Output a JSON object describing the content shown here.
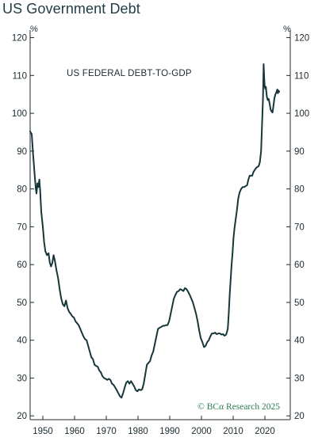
{
  "page": {
    "title": "US Government Debt"
  },
  "chart_data": {
    "type": "line",
    "annotation": "US FEDERAL DEBT-TO-GDP",
    "credit": "© BCα Research 2025",
    "unit_left": "%",
    "unit_right": "%",
    "xlim": [
      1946,
      2028
    ],
    "ylim": [
      19,
      122
    ],
    "yticks": [
      20,
      30,
      40,
      50,
      60,
      70,
      80,
      90,
      100,
      110,
      120
    ],
    "xticks": [
      1950,
      1960,
      1970,
      1980,
      1990,
      2000,
      2010,
      2020
    ],
    "line_color": "#16373a",
    "credit_color": "#2e7d55",
    "series": [
      {
        "values": [
          [
            1946.0,
            95.2
          ],
          [
            1946.5,
            94.5
          ],
          [
            1946.9,
            89.5
          ],
          [
            1947.4,
            84.0
          ],
          [
            1947.8,
            80.0
          ],
          [
            1948.0,
            78.8
          ],
          [
            1948.3,
            81.5
          ],
          [
            1948.6,
            80.5
          ],
          [
            1948.9,
            82.5
          ],
          [
            1949.2,
            79.0
          ],
          [
            1949.5,
            74.0
          ],
          [
            1950.0,
            70.0
          ],
          [
            1950.4,
            66.0
          ],
          [
            1950.8,
            63.5
          ],
          [
            1951.3,
            62.5
          ],
          [
            1951.8,
            63.0
          ],
          [
            1952.2,
            60.5
          ],
          [
            1952.6,
            59.5
          ],
          [
            1953.0,
            60.5
          ],
          [
            1953.4,
            62.5
          ],
          [
            1953.8,
            61.0
          ],
          [
            1954.3,
            58.5
          ],
          [
            1954.8,
            56.5
          ],
          [
            1955.3,
            53.5
          ],
          [
            1955.8,
            51.0
          ],
          [
            1956.3,
            49.5
          ],
          [
            1956.8,
            49.0
          ],
          [
            1957.3,
            50.5
          ],
          [
            1957.8,
            48.5
          ],
          [
            1958.3,
            47.5
          ],
          [
            1958.8,
            47.0
          ],
          [
            1959.3,
            46.3
          ],
          [
            1959.8,
            46.0
          ],
          [
            1960.3,
            45.0
          ],
          [
            1960.8,
            44.5
          ],
          [
            1961.3,
            44.0
          ],
          [
            1961.8,
            43.0
          ],
          [
            1962.3,
            42.0
          ],
          [
            1962.8,
            41.0
          ],
          [
            1963.3,
            40.3
          ],
          [
            1963.8,
            40.0
          ],
          [
            1964.3,
            38.5
          ],
          [
            1964.8,
            37.0
          ],
          [
            1965.3,
            35.5
          ],
          [
            1965.8,
            35.0
          ],
          [
            1966.3,
            33.5
          ],
          [
            1966.8,
            33.2
          ],
          [
            1967.3,
            33.0
          ],
          [
            1967.8,
            32.0
          ],
          [
            1968.3,
            31.5
          ],
          [
            1968.8,
            30.5
          ],
          [
            1969.3,
            30.0
          ],
          [
            1969.8,
            29.8
          ],
          [
            1970.3,
            29.5
          ],
          [
            1970.8,
            29.8
          ],
          [
            1971.3,
            29.5
          ],
          [
            1971.8,
            28.5
          ],
          [
            1972.3,
            28.2
          ],
          [
            1972.8,
            27.5
          ],
          [
            1973.3,
            26.8
          ],
          [
            1973.8,
            26.0
          ],
          [
            1974.3,
            25.2
          ],
          [
            1974.8,
            24.8
          ],
          [
            1975.3,
            26.0
          ],
          [
            1975.8,
            27.5
          ],
          [
            1976.3,
            28.8
          ],
          [
            1976.8,
            29.2
          ],
          [
            1977.3,
            28.5
          ],
          [
            1977.8,
            29.2
          ],
          [
            1978.3,
            28.5
          ],
          [
            1978.8,
            27.8
          ],
          [
            1979.3,
            26.8
          ],
          [
            1979.8,
            26.5
          ],
          [
            1980.3,
            27.0
          ],
          [
            1980.8,
            26.8
          ],
          [
            1981.3,
            27.0
          ],
          [
            1981.8,
            28.5
          ],
          [
            1982.3,
            31.0
          ],
          [
            1982.8,
            33.5
          ],
          [
            1983.3,
            34.0
          ],
          [
            1983.8,
            34.5
          ],
          [
            1984.3,
            36.0
          ],
          [
            1984.8,
            37.0
          ],
          [
            1985.3,
            39.0
          ],
          [
            1985.8,
            41.0
          ],
          [
            1986.3,
            43.0
          ],
          [
            1986.8,
            43.3
          ],
          [
            1987.3,
            43.5
          ],
          [
            1987.8,
            43.8
          ],
          [
            1988.3,
            43.8
          ],
          [
            1988.8,
            44.0
          ],
          [
            1989.3,
            44.0
          ],
          [
            1989.8,
            45.0
          ],
          [
            1990.3,
            47.0
          ],
          [
            1990.8,
            49.0
          ],
          [
            1991.3,
            51.0
          ],
          [
            1991.8,
            52.0
          ],
          [
            1992.3,
            52.8
          ],
          [
            1992.8,
            53.0
          ],
          [
            1993.3,
            53.5
          ],
          [
            1993.8,
            53.3
          ],
          [
            1994.3,
            53.0
          ],
          [
            1994.8,
            53.8
          ],
          [
            1995.3,
            53.5
          ],
          [
            1995.8,
            52.8
          ],
          [
            1996.3,
            52.0
          ],
          [
            1996.8,
            51.0
          ],
          [
            1997.3,
            50.0
          ],
          [
            1997.8,
            48.5
          ],
          [
            1998.3,
            47.0
          ],
          [
            1998.8,
            45.0
          ],
          [
            1999.3,
            42.5
          ],
          [
            1999.8,
            40.5
          ],
          [
            2000.3,
            39.5
          ],
          [
            2000.8,
            38.2
          ],
          [
            2001.3,
            38.5
          ],
          [
            2001.8,
            39.5
          ],
          [
            2002.3,
            40.0
          ],
          [
            2002.8,
            41.0
          ],
          [
            2003.3,
            41.8
          ],
          [
            2003.8,
            41.8
          ],
          [
            2004.3,
            42.0
          ],
          [
            2004.8,
            41.6
          ],
          [
            2005.3,
            41.8
          ],
          [
            2005.8,
            41.8
          ],
          [
            2006.3,
            41.5
          ],
          [
            2006.8,
            41.6
          ],
          [
            2007.3,
            41.2
          ],
          [
            2007.8,
            41.5
          ],
          [
            2008.3,
            43.0
          ],
          [
            2008.6,
            47.0
          ],
          [
            2008.9,
            52.0
          ],
          [
            2009.2,
            56.0
          ],
          [
            2009.5,
            60.0
          ],
          [
            2009.8,
            63.0
          ],
          [
            2010.1,
            67.0
          ],
          [
            2010.4,
            69.5
          ],
          [
            2010.8,
            72.0
          ],
          [
            2011.2,
            74.5
          ],
          [
            2011.6,
            77.5
          ],
          [
            2012.0,
            79.0
          ],
          [
            2012.5,
            80.0
          ],
          [
            2013.0,
            80.5
          ],
          [
            2013.5,
            80.5
          ],
          [
            2014.0,
            80.8
          ],
          [
            2014.4,
            81.0
          ],
          [
            2014.8,
            82.5
          ],
          [
            2015.2,
            83.5
          ],
          [
            2015.6,
            83.5
          ],
          [
            2016.0,
            83.5
          ],
          [
            2016.4,
            84.5
          ],
          [
            2016.8,
            85.0
          ],
          [
            2017.2,
            85.5
          ],
          [
            2017.6,
            85.8
          ],
          [
            2018.0,
            86.0
          ],
          [
            2018.4,
            87.0
          ],
          [
            2018.8,
            90.0
          ],
          [
            2019.1,
            97.0
          ],
          [
            2019.4,
            104.0
          ],
          [
            2019.6,
            113.0
          ],
          [
            2019.75,
            110.0
          ],
          [
            2019.9,
            107.5
          ],
          [
            2020.1,
            106.5
          ],
          [
            2020.3,
            107.0
          ],
          [
            2020.6,
            104.5
          ],
          [
            2020.9,
            103.5
          ],
          [
            2021.2,
            103.8
          ],
          [
            2021.5,
            102.5
          ],
          [
            2021.8,
            101.0
          ],
          [
            2022.1,
            100.5
          ],
          [
            2022.4,
            100.2
          ],
          [
            2022.7,
            102.0
          ],
          [
            2023.0,
            104.0
          ],
          [
            2023.3,
            105.0
          ],
          [
            2023.6,
            105.5
          ],
          [
            2023.9,
            106.3
          ],
          [
            2024.1,
            105.3
          ],
          [
            2024.3,
            106.0
          ],
          [
            2024.5,
            105.7
          ]
        ]
      }
    ]
  }
}
